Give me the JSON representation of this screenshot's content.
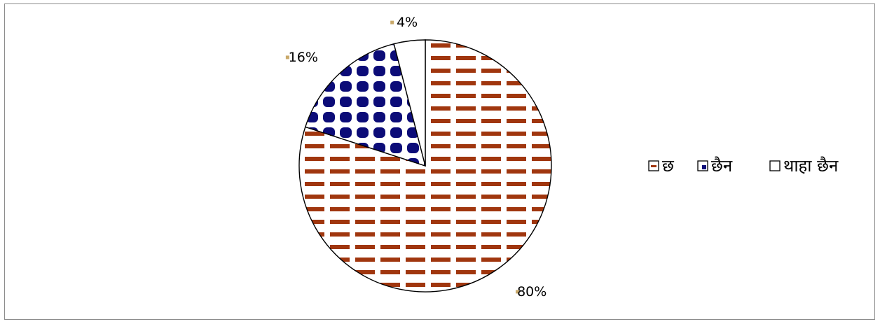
{
  "chart_data": {
    "type": "pie",
    "title": "",
    "categories": [
      "छ",
      "छैन",
      "थाहा छैन"
    ],
    "values": [
      80,
      16,
      4
    ],
    "value_labels": [
      "80%",
      "16%",
      "4%"
    ],
    "series": [
      {
        "name": "छ",
        "value": 80,
        "label": "80%",
        "pattern": "dashes",
        "color": "#a0360e"
      },
      {
        "name": "छैन",
        "value": 16,
        "label": "16%",
        "pattern": "dots",
        "color": "#0c0c78"
      },
      {
        "name": "थाहा छैन",
        "value": 4,
        "label": "4%",
        "pattern": "none",
        "color": "#ffffff"
      }
    ],
    "legend_position": "right",
    "start_angle_deg": 0,
    "direction": "clockwise"
  }
}
